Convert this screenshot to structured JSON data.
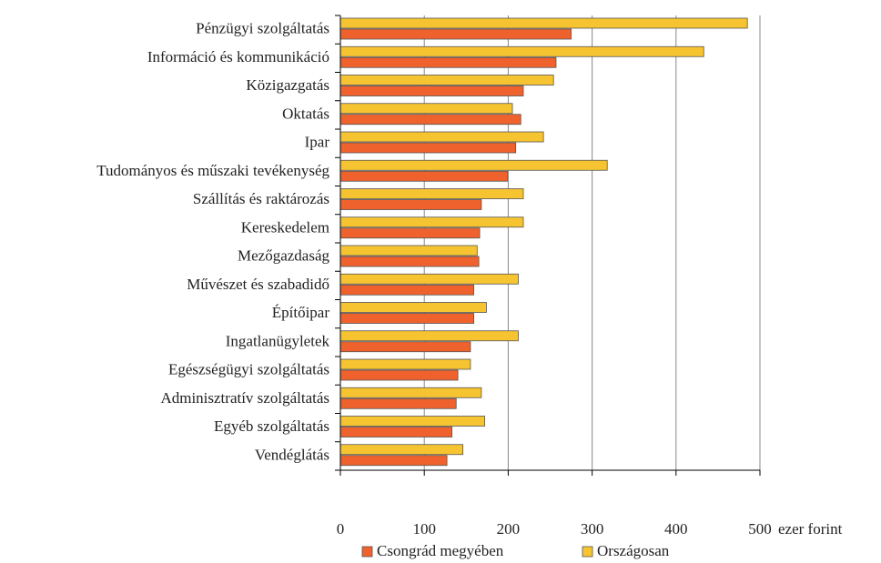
{
  "chart_data": {
    "type": "barh",
    "categories": [
      "Pénzügyi szolgáltatás",
      "Információ és kommunikáció",
      "Közigazgatás",
      "Oktatás",
      "Ipar",
      "Tudományos és műszaki tevékenység",
      "Szállítás és raktározás",
      "Kereskedelem",
      "Mezőgazdaság",
      "Művészet és szabadidő",
      "Építőipar",
      "Ingatlanügyletek",
      "Egészségügyi szolgáltatás",
      "Adminisztratív szolgáltatás",
      "Egyéb szolgáltatás",
      "Vendéglátás"
    ],
    "series": [
      {
        "name": "Csongrád megyében",
        "color": "#f0622d",
        "values": [
          275,
          257,
          218,
          215,
          209,
          199,
          168,
          166,
          165,
          159,
          159,
          155,
          140,
          138,
          133,
          127
        ]
      },
      {
        "name": "Országosan",
        "color": "#f7c431",
        "values": [
          485,
          433,
          254,
          205,
          242,
          318,
          218,
          218,
          163,
          212,
          174,
          212,
          155,
          168,
          172,
          146
        ]
      }
    ],
    "xlim": [
      0,
      500
    ],
    "xticks": [
      0,
      100,
      200,
      300,
      400,
      500
    ],
    "xlabel": "ezer forint",
    "grid": true,
    "legend": "bottom"
  }
}
